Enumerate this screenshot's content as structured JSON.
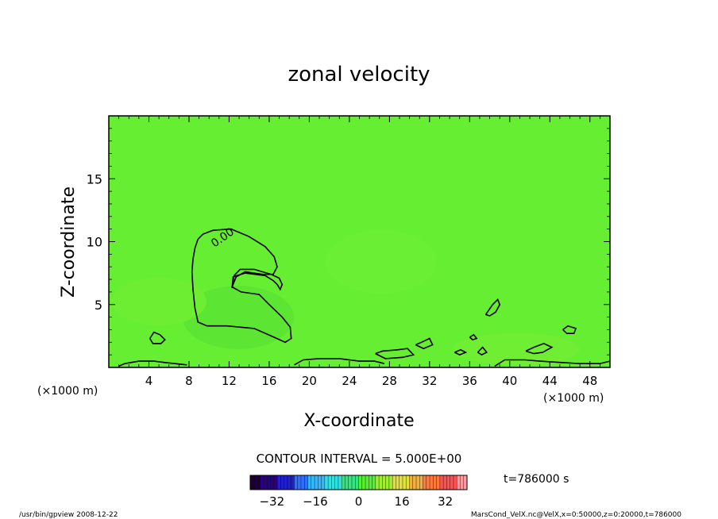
{
  "chart_data": {
    "type": "contour",
    "title": "zonal velocity",
    "xlabel": "X-coordinate",
    "ylabel": "Z-coordinate",
    "x_unit": "(×1000 m)",
    "z_unit": "(×1000 m)",
    "xlim": [
      0,
      50
    ],
    "ylim": [
      0,
      20
    ],
    "x_ticks": [
      4,
      8,
      12,
      16,
      20,
      24,
      28,
      32,
      36,
      40,
      44,
      48
    ],
    "y_ticks": [
      5,
      10,
      15
    ],
    "contour_interval_text": "CONTOUR INTERVAL = 5.000E+00",
    "contour_level_label": "0.00",
    "time_text": "t=786000 s",
    "colorbar": {
      "range": [
        -40,
        40
      ],
      "ticks": [
        -32,
        -16,
        0,
        16,
        32
      ],
      "colors": [
        "#1a0033",
        "#2b0080",
        "#1f1fcc",
        "#2f6fff",
        "#33b8ff",
        "#33e0e0",
        "#33e680",
        "#55ee33",
        "#a0ee33",
        "#e0e040",
        "#f0b040",
        "#ff7a3a",
        "#ff5050",
        "#ff9aa0"
      ]
    },
    "field_color": "#66ee33",
    "contours_zero": [
      [
        [
          8.9,
          10.2
        ],
        [
          9.4,
          10.6
        ],
        [
          10.4,
          10.9
        ],
        [
          12.2,
          11.0
        ],
        [
          14.0,
          10.4
        ],
        [
          15.6,
          9.6
        ],
        [
          16.5,
          8.8
        ],
        [
          16.8,
          8.0
        ],
        [
          16.4,
          7.4
        ],
        [
          15.3,
          7.4
        ],
        [
          13.6,
          7.6
        ],
        [
          12.7,
          7.2
        ],
        [
          12.3,
          6.4
        ],
        [
          13.2,
          6.0
        ],
        [
          15.0,
          5.8
        ],
        [
          16.0,
          5.0
        ],
        [
          17.3,
          4.0
        ],
        [
          18.1,
          3.2
        ],
        [
          18.2,
          2.3
        ],
        [
          17.6,
          2.0
        ],
        [
          16.5,
          2.4
        ],
        [
          14.5,
          3.1
        ],
        [
          11.8,
          3.3
        ],
        [
          9.8,
          3.3
        ],
        [
          8.9,
          3.6
        ],
        [
          8.6,
          4.7
        ],
        [
          8.4,
          6.2
        ],
        [
          8.3,
          7.6
        ],
        [
          8.4,
          8.6
        ],
        [
          8.6,
          9.5
        ],
        [
          8.9,
          10.2
        ]
      ],
      [
        [
          12.3,
          6.3
        ],
        [
          12.4,
          7.2
        ],
        [
          13.6,
          7.5
        ],
        [
          15.6,
          7.3
        ],
        [
          16.4,
          6.9
        ],
        [
          16.8,
          6.6
        ],
        [
          17.1,
          6.2
        ],
        [
          17.3,
          6.6
        ],
        [
          17.0,
          7.1
        ],
        [
          16.2,
          7.4
        ],
        [
          14.5,
          7.8
        ],
        [
          13.1,
          7.8
        ],
        [
          12.5,
          7.3
        ],
        [
          12.3,
          6.3
        ]
      ],
      [
        [
          4.1,
          2.3
        ],
        [
          4.5,
          2.8
        ],
        [
          5.1,
          2.6
        ],
        [
          5.6,
          2.2
        ],
        [
          5.2,
          1.9
        ],
        [
          4.4,
          1.9
        ],
        [
          4.1,
          2.3
        ]
      ],
      [
        [
          37.6,
          4.2
        ],
        [
          38.3,
          5.0
        ],
        [
          38.8,
          5.4
        ],
        [
          39.0,
          5.0
        ],
        [
          38.6,
          4.4
        ],
        [
          38.0,
          4.1
        ],
        [
          37.6,
          4.2
        ]
      ],
      [
        [
          45.3,
          3.0
        ],
        [
          45.8,
          3.3
        ],
        [
          46.6,
          3.1
        ],
        [
          46.4,
          2.7
        ],
        [
          45.7,
          2.7
        ],
        [
          45.3,
          3.0
        ]
      ],
      [
        [
          26.6,
          1.1
        ],
        [
          27.3,
          1.3
        ],
        [
          28.8,
          1.4
        ],
        [
          29.8,
          1.5
        ],
        [
          30.4,
          1.0
        ],
        [
          29.3,
          0.8
        ],
        [
          27.6,
          0.7
        ],
        [
          26.6,
          1.1
        ]
      ],
      [
        [
          30.6,
          1.8
        ],
        [
          31.2,
          2.0
        ],
        [
          32.0,
          2.3
        ],
        [
          32.3,
          1.8
        ],
        [
          31.4,
          1.5
        ],
        [
          30.6,
          1.8
        ]
      ],
      [
        [
          41.6,
          1.3
        ],
        [
          42.4,
          1.6
        ],
        [
          43.4,
          1.9
        ],
        [
          44.2,
          1.6
        ],
        [
          43.3,
          1.2
        ],
        [
          42.4,
          1.1
        ],
        [
          41.6,
          1.3
        ]
      ],
      [
        [
          34.5,
          1.2
        ],
        [
          35.1,
          1.4
        ],
        [
          35.6,
          1.2
        ],
        [
          35.0,
          1.0
        ],
        [
          34.5,
          1.2
        ]
      ],
      [
        [
          36.8,
          1.2
        ],
        [
          37.3,
          1.6
        ],
        [
          37.7,
          1.2
        ],
        [
          37.2,
          1.0
        ],
        [
          36.8,
          1.2
        ]
      ],
      [
        [
          36.0,
          2.4
        ],
        [
          36.4,
          2.6
        ],
        [
          36.7,
          2.3
        ],
        [
          36.3,
          2.2
        ],
        [
          36.0,
          2.4
        ]
      ],
      [
        [
          1.0,
          0.1
        ],
        [
          1.6,
          0.3
        ],
        [
          3.0,
          0.5
        ],
        [
          4.5,
          0.5
        ],
        [
          5.5,
          0.4
        ],
        [
          6.6,
          0.3
        ],
        [
          7.8,
          0.2
        ]
      ],
      [
        [
          18.5,
          0.2
        ],
        [
          19.4,
          0.6
        ],
        [
          21.0,
          0.7
        ],
        [
          23.0,
          0.7
        ],
        [
          25.0,
          0.5
        ],
        [
          26.5,
          0.5
        ],
        [
          27.5,
          0.3
        ]
      ],
      [
        [
          38.5,
          0.1
        ],
        [
          39.5,
          0.6
        ],
        [
          41.5,
          0.6
        ],
        [
          43.0,
          0.5
        ],
        [
          45.0,
          0.4
        ],
        [
          47.0,
          0.3
        ],
        [
          49.0,
          0.3
        ],
        [
          50.0,
          0.5
        ]
      ]
    ],
    "footer": {
      "left": "/usr/bin/gpview  2008-12-22",
      "right": "MarsCond_VelX.nc@VelX,x=0:50000,z=0:20000,t=786000"
    }
  }
}
